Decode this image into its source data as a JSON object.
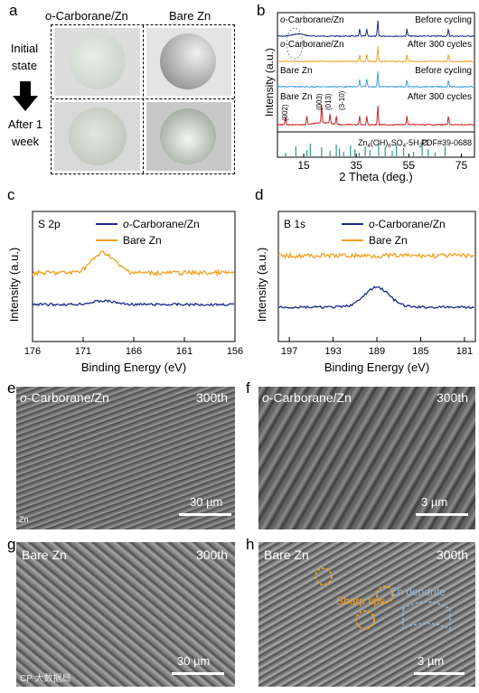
{
  "panel_letters": {
    "a": "a",
    "b": "b",
    "c": "c",
    "d": "d",
    "e": "e",
    "f": "f",
    "g": "g",
    "h": "h"
  },
  "panel_a": {
    "col1": "o-Carborane/Zn",
    "col2": "Bare Zn",
    "row1": "Initial state",
    "row2": "After 1 week"
  },
  "chart_data": [
    {
      "panel": "b",
      "type": "line",
      "xlabel": "2 Theta (deg.)",
      "ylabel": "Intensity (a.u.)",
      "xlim": [
        5,
        80
      ],
      "xticks": [
        "15",
        "35",
        "55",
        "75"
      ],
      "series": [
        {
          "name": "o-Carborane/Zn",
          "state": "Before cycling",
          "color": "#1b2a8a",
          "peaks": [
            36.3,
            39.0,
            43.2,
            54.3,
            70.1
          ]
        },
        {
          "name": "o-Carborane/Zn",
          "state": "After 300 cycles",
          "color": "#f0a020",
          "peaks": [
            36.3,
            39.0,
            43.2,
            54.3,
            70.1
          ]
        },
        {
          "name": "Bare Zn",
          "state": "Before cycling",
          "color": "#3aa0e8",
          "peaks": [
            36.3,
            39.0,
            43.2,
            54.3,
            70.1
          ]
        },
        {
          "name": "Bare Zn",
          "state": "After 300 cycles",
          "color": "#cc2222",
          "peaks": [
            8.1,
            16.2,
            21.8,
            25.0,
            27.4,
            36.3,
            39.0,
            43.2,
            54.3,
            70.1
          ]
        }
      ],
      "annotations": [
        "(002)",
        "(003)",
        "(013)",
        "(3-10)"
      ],
      "reference": {
        "label": "Zn4(OH)6SO4·5H2O",
        "pdf": "PDF#39-0688",
        "color": "#2a9a8a"
      }
    },
    {
      "panel": "c",
      "type": "line",
      "title": "S 2p",
      "xlabel": "Binding Energy (eV)",
      "ylabel": "Intensity (a.u.)",
      "xlim": [
        176,
        156
      ],
      "xticks": [
        "176",
        "171",
        "166",
        "161",
        "156"
      ],
      "series": [
        {
          "name": "o-Carborane/Zn",
          "color": "#1b2a8a",
          "peak_at": 169.0
        },
        {
          "name": "Bare Zn",
          "color": "#f0a020",
          "peak_at": 169.0
        }
      ]
    },
    {
      "panel": "d",
      "type": "line",
      "title": "B 1s",
      "xlabel": "Binding Energy (eV)",
      "ylabel": "Intensity (a.u.)",
      "xlim": [
        198,
        180
      ],
      "xticks": [
        "197",
        "193",
        "189",
        "185",
        "181"
      ],
      "series": [
        {
          "name": "o-Carborane/Zn",
          "color": "#1b2a8a",
          "peak_at": 189.0
        },
        {
          "name": "Bare Zn",
          "color": "#f0a020",
          "peak_at": null
        }
      ]
    }
  ],
  "sem": {
    "e": {
      "label": "o-Carborane/Zn",
      "cycles": "300th",
      "scale": "30 µm",
      "extra": "Zn"
    },
    "f": {
      "label": "o-Carborane/Zn",
      "cycles": "300th",
      "scale": "3 µm"
    },
    "g": {
      "label": "Bare Zn",
      "cycles": "300th",
      "scale": "30 µm"
    },
    "h": {
      "label": "Bare Zn",
      "cycles": "300th",
      "scale": "3 µm",
      "ann1": "Sharp tips",
      "ann2": "Zn dendrite"
    }
  },
  "watermark": "CP 大数据局"
}
